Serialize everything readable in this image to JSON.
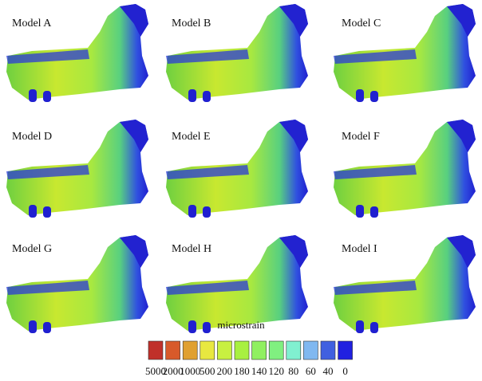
{
  "panels": [
    "Model A",
    "Model B",
    "Model C",
    "Model D",
    "Model E",
    "Model F",
    "Model G",
    "Model H",
    "Model I"
  ],
  "legend": {
    "title": "microstrain",
    "items": [
      {
        "label": "5000",
        "color": "#c0302a"
      },
      {
        "label": "2000",
        "color": "#d85a2a"
      },
      {
        "label": "1000",
        "color": "#e0a030"
      },
      {
        "label": "500",
        "color": "#e8e840"
      },
      {
        "label": "200",
        "color": "#c8f040"
      },
      {
        "label": "180",
        "color": "#a8f040"
      },
      {
        "label": "140",
        "color": "#90f060"
      },
      {
        "label": "120",
        "color": "#80f080"
      },
      {
        "label": "80",
        "color": "#80f0d0"
      },
      {
        "label": "60",
        "color": "#80b8f0"
      },
      {
        "label": "40",
        "color": "#4060e0"
      },
      {
        "label": "0",
        "color": "#2020e0"
      }
    ]
  }
}
